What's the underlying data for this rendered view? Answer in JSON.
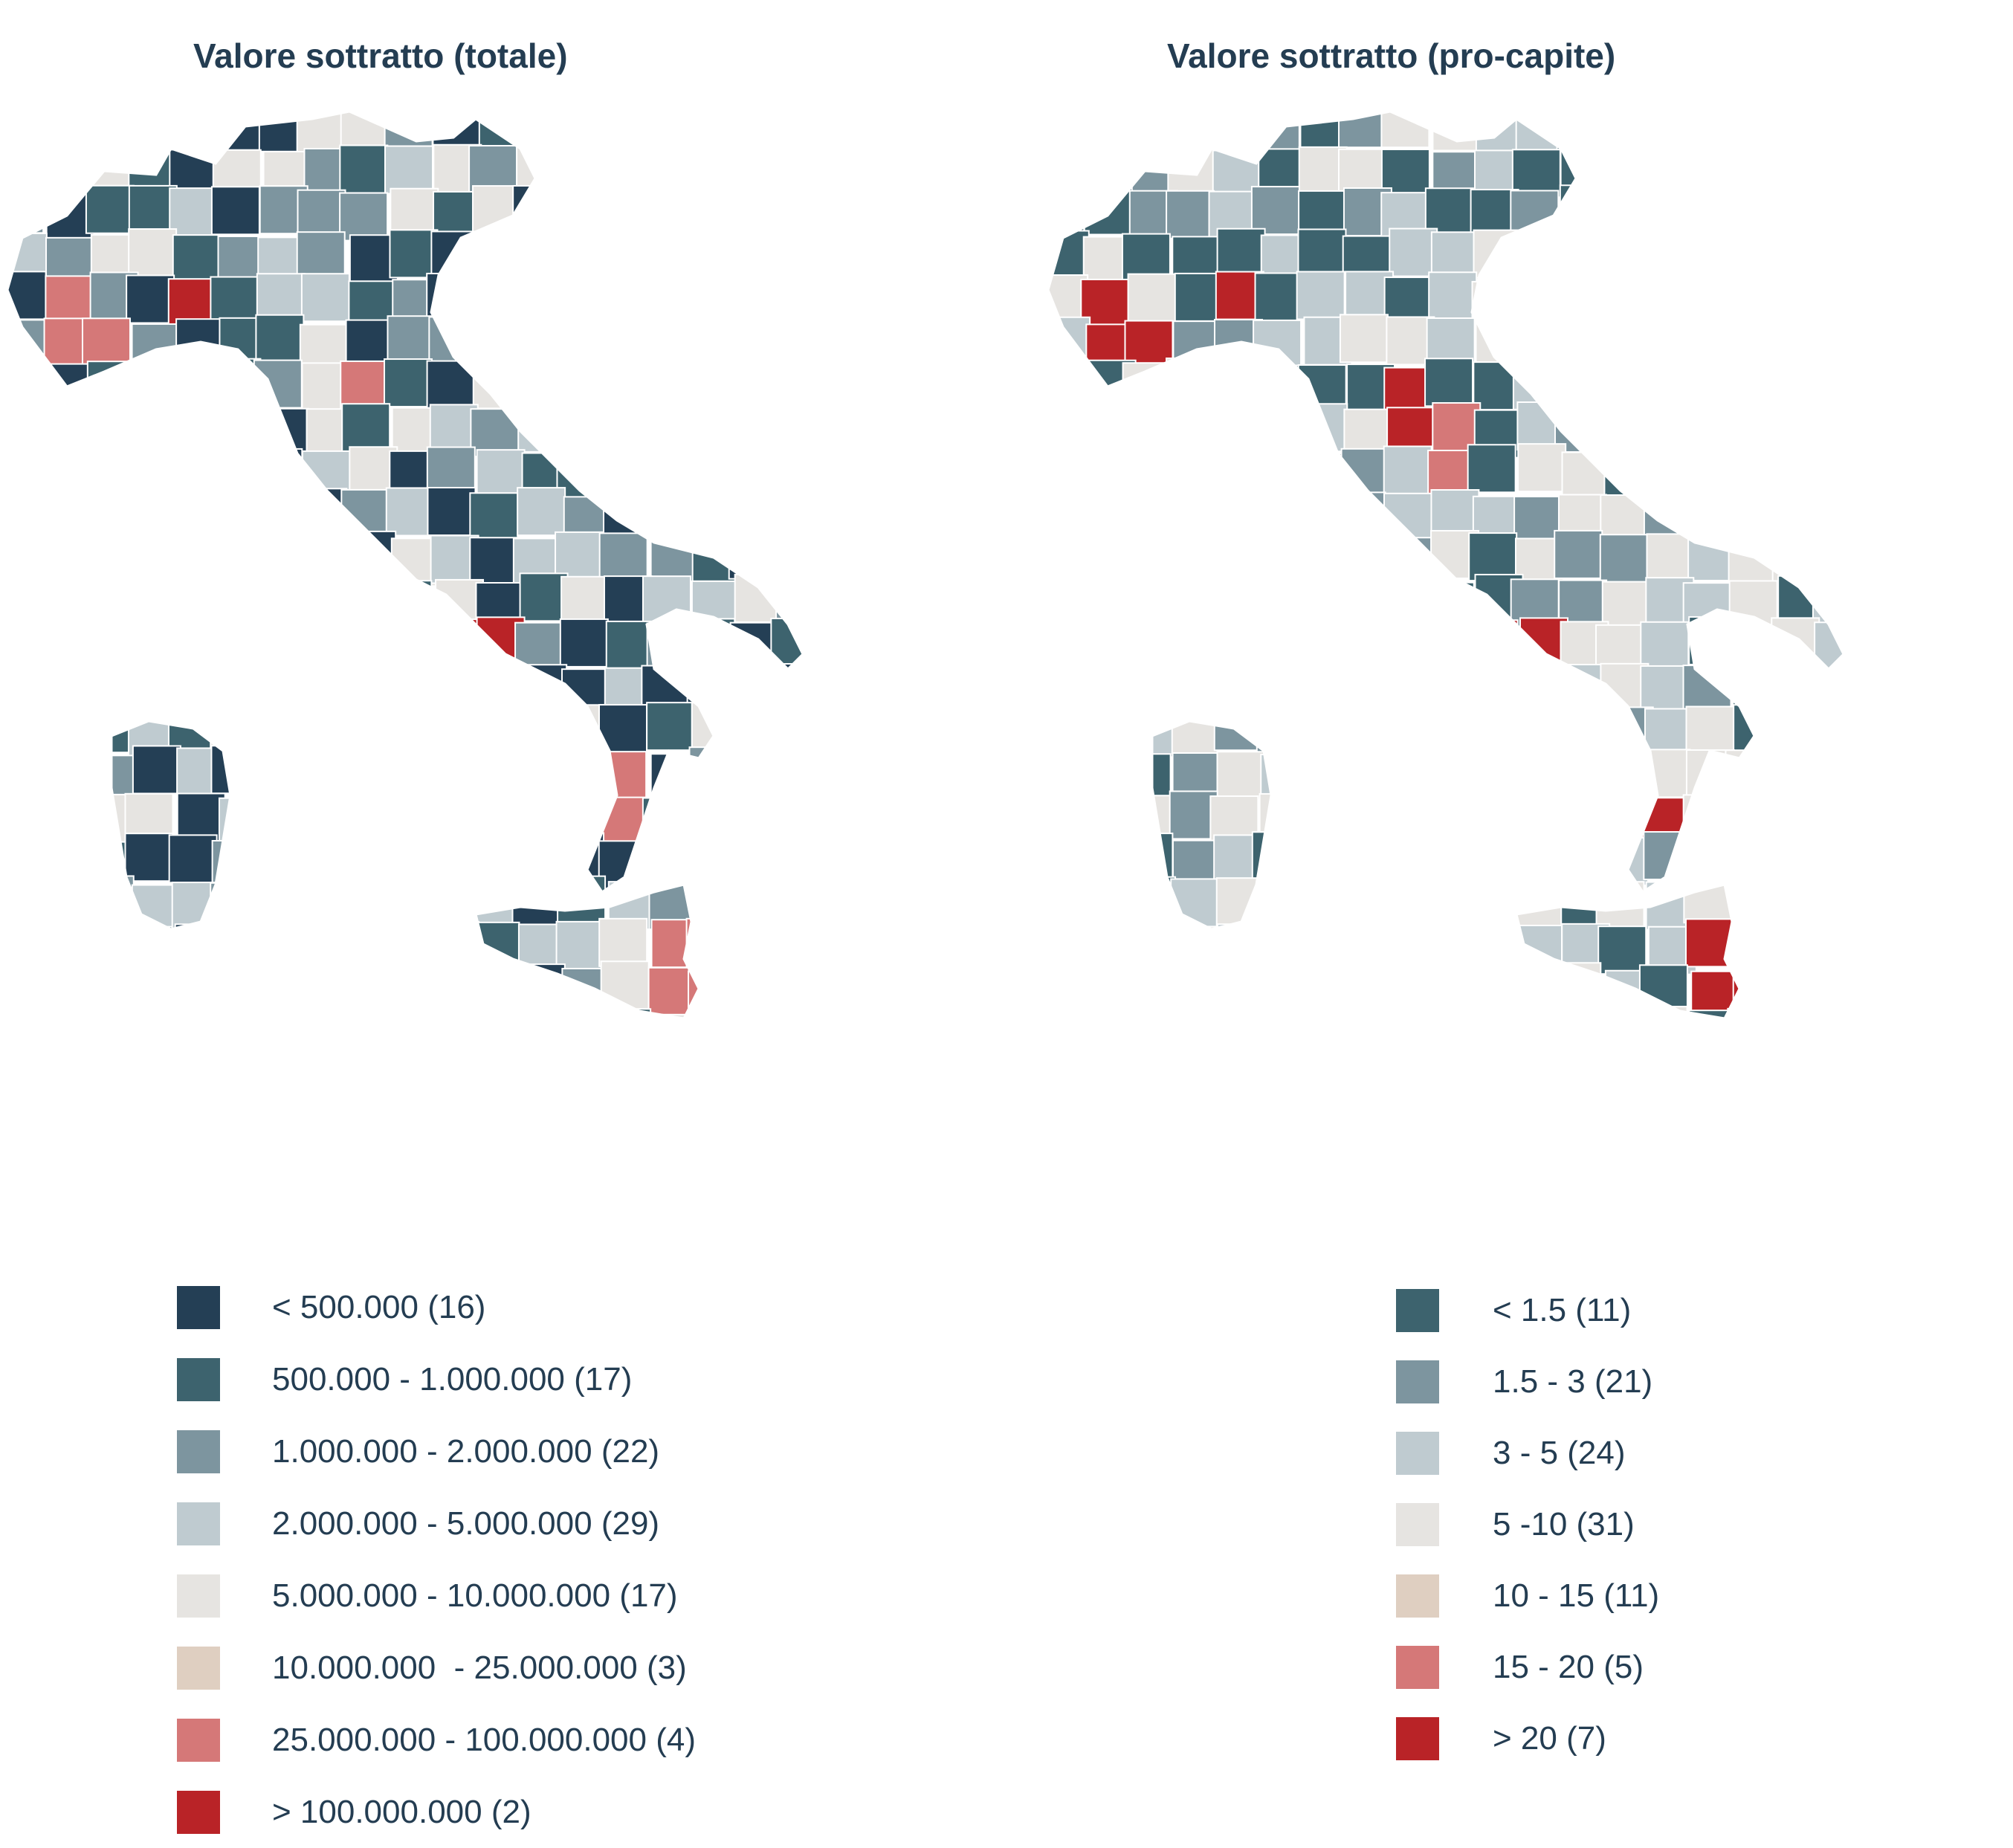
{
  "maps": [
    {
      "title": "Valore sottratto (totale)",
      "legend": [
        {
          "label": "< 500.000 (16)",
          "color": "#243f55"
        },
        {
          "label": "500.000 - 1.000.000 (17)",
          "color": "#3d636e"
        },
        {
          "label": "1.000.000 - 2.000.000 (22)",
          "color": "#7d959f"
        },
        {
          "label": "2.000.000 - 5.000.000 (29)",
          "color": "#bfcbd0"
        },
        {
          "label": "5.000.000 - 10.000.000 (17)",
          "color": "#e6e4e1"
        },
        {
          "label": "10.000.000  - 25.000.000 (3)",
          "color": "#dfcfc1"
        },
        {
          "label": "25.000.000 - 100.000.000 (4)",
          "color": "#d57878"
        },
        {
          "label": "> 100.000.000 (2)",
          "color": "#b92327"
        }
      ]
    },
    {
      "title": "Valore sottratto (pro-capite)",
      "legend": [
        {
          "label": "< 1.5 (11)",
          "color": "#3d636e"
        },
        {
          "label": "1.5 - 3 (21)",
          "color": "#7d959f"
        },
        {
          "label": "3 - 5 (24)",
          "color": "#bfcbd0"
        },
        {
          "label": "5 -10 (31)",
          "color": "#e6e4e1"
        },
        {
          "label": "10 - 15 (11)",
          "color": "#dfcfc1"
        },
        {
          "label": "15 - 20 (5)",
          "color": "#d57878"
        },
        {
          "label": "> 20 (7)",
          "color": "#b92327"
        }
      ]
    }
  ]
}
